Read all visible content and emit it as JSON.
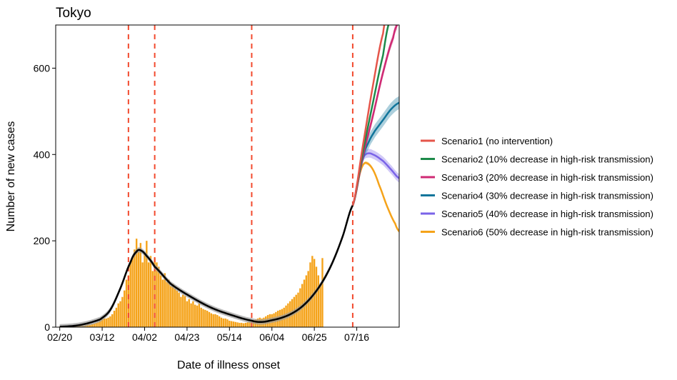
{
  "chart_data": {
    "type": "bar",
    "title": "Tokyo",
    "xlabel": "Date of illness onset",
    "ylabel": "Number of new cases",
    "x_ticks": [
      {
        "label": "02/20",
        "day": 0
      },
      {
        "label": "03/12",
        "day": 21
      },
      {
        "label": "04/02",
        "day": 42
      },
      {
        "label": "04/23",
        "day": 63
      },
      {
        "label": "05/14",
        "day": 84
      },
      {
        "label": "06/04",
        "day": 105
      },
      {
        "label": "06/25",
        "day": 126
      },
      {
        "label": "07/16",
        "day": 147
      }
    ],
    "x_range": [
      -2,
      168
    ],
    "ylim": [
      0,
      700
    ],
    "y_ticks": [
      0,
      200,
      400,
      600
    ],
    "grid": false,
    "legend_position": "right",
    "intervention_lines_day": [
      34,
      47,
      95,
      145
    ],
    "reported_cases": {
      "start_day": 0,
      "values": [
        1,
        1,
        1,
        1,
        2,
        2,
        2,
        3,
        3,
        3,
        4,
        4,
        4,
        5,
        6,
        6,
        7,
        8,
        10,
        12,
        15,
        18,
        20,
        20,
        22,
        25,
        30,
        38,
        45,
        55,
        60,
        70,
        85,
        110,
        120,
        150,
        160,
        180,
        205,
        175,
        195,
        150,
        170,
        200,
        150,
        165,
        130,
        160,
        150,
        140,
        120,
        110,
        125,
        105,
        110,
        95,
        100,
        90,
        85,
        80,
        70,
        75,
        72,
        60,
        65,
        55,
        60,
        52,
        50,
        55,
        45,
        42,
        40,
        38,
        35,
        32,
        30,
        30,
        28,
        25,
        22,
        20,
        20,
        18,
        15,
        14,
        13,
        12,
        11,
        10,
        10,
        9,
        10,
        11,
        12,
        14,
        16,
        18,
        20,
        22,
        20,
        22,
        25,
        28,
        30,
        30,
        32,
        35,
        38,
        40,
        42,
        45,
        50,
        55,
        60,
        65,
        70,
        75,
        80,
        90,
        100,
        110,
        120,
        130,
        150,
        165,
        158,
        140,
        120,
        95,
        160
      ]
    },
    "fitted": {
      "name": "",
      "points": [
        [
          0,
          1
        ],
        [
          10,
          5
        ],
        [
          20,
          18
        ],
        [
          25,
          40
        ],
        [
          30,
          90
        ],
        [
          35,
          150
        ],
        [
          38,
          175
        ],
        [
          40,
          178
        ],
        [
          43,
          165
        ],
        [
          47,
          140
        ],
        [
          55,
          100
        ],
        [
          65,
          70
        ],
        [
          75,
          45
        ],
        [
          85,
          28
        ],
        [
          95,
          15
        ],
        [
          100,
          12
        ],
        [
          105,
          16
        ],
        [
          110,
          22
        ],
        [
          115,
          32
        ],
        [
          120,
          48
        ],
        [
          125,
          72
        ],
        [
          130,
          105
        ],
        [
          135,
          150
        ],
        [
          140,
          210
        ],
        [
          145,
          282
        ]
      ],
      "band_halfwidth": 6
    },
    "projection_start": {
      "day": 145,
      "value": 282
    },
    "series": [
      {
        "name": "Scenario1 (no intervention)",
        "color": "#e5554a",
        "points": [
          [
            145,
            282
          ],
          [
            150,
            420
          ],
          [
            155,
            560
          ],
          [
            160,
            680
          ],
          [
            162,
            720
          ]
        ],
        "band": 8
      },
      {
        "name": "Scenario2 (10% decrease in high-risk transmission)",
        "color": "#1d8a4a",
        "points": [
          [
            145,
            282
          ],
          [
            150,
            405
          ],
          [
            155,
            520
          ],
          [
            160,
            630
          ],
          [
            163,
            705
          ]
        ],
        "band": 8
      },
      {
        "name": "Scenario3 (20% decrease in high-risk transmission)",
        "color": "#cf2a74",
        "points": [
          [
            145,
            282
          ],
          [
            150,
            395
          ],
          [
            155,
            490
          ],
          [
            160,
            590
          ],
          [
            165,
            670
          ],
          [
            167,
            700
          ]
        ],
        "band": 10
      },
      {
        "name": "Scenario4 (30% decrease in high-risk transmission)",
        "color": "#11759b",
        "points": [
          [
            145,
            282
          ],
          [
            150,
            390
          ],
          [
            153,
            430
          ],
          [
            156,
            455
          ],
          [
            160,
            480
          ],
          [
            164,
            505
          ],
          [
            168,
            520
          ]
        ],
        "band": 15
      },
      {
        "name": "Scenario5 (40% decrease in high-risk transmission)",
        "color": "#7a63e8",
        "points": [
          [
            145,
            282
          ],
          [
            148,
            350
          ],
          [
            150,
            390
          ],
          [
            152,
            402
          ],
          [
            155,
            400
          ],
          [
            160,
            385
          ],
          [
            164,
            365
          ],
          [
            168,
            345
          ]
        ],
        "band": 10
      },
      {
        "name": "Scenario6 (50% decrease in high-risk transmission)",
        "color": "#f5a31a",
        "points": [
          [
            145,
            282
          ],
          [
            148,
            345
          ],
          [
            150,
            375
          ],
          [
            152,
            380
          ],
          [
            155,
            365
          ],
          [
            158,
            330
          ],
          [
            162,
            280
          ],
          [
            166,
            240
          ],
          [
            168,
            222
          ]
        ],
        "band": 4
      }
    ]
  },
  "colors": {
    "bars": "#f5a31a",
    "fitted_line": "#000000",
    "fitted_band": "#9a9a9a",
    "intervention_line": "#f24a2e",
    "axis": "#000000"
  }
}
